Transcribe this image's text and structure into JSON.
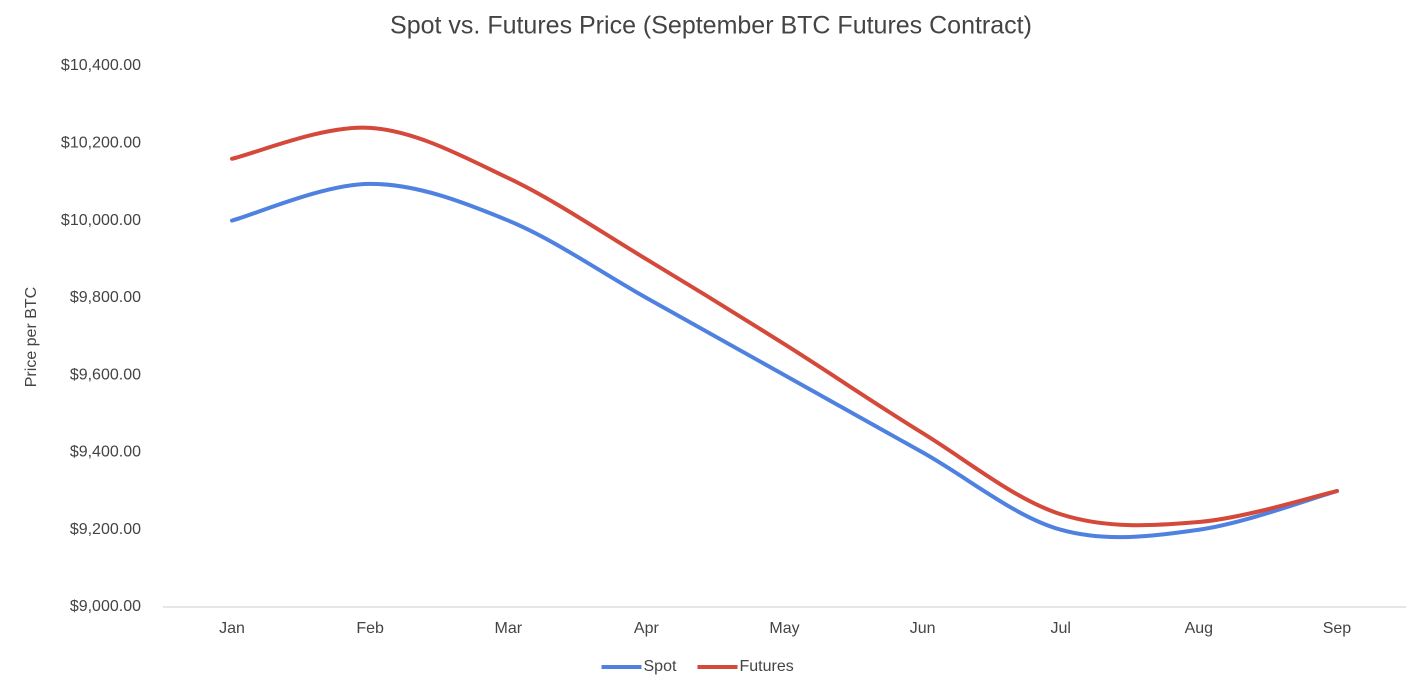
{
  "chart_data": {
    "type": "line",
    "title": "Spot vs. Futures Price (September BTC Futures Contract)",
    "y_label": "Price per BTC",
    "categories": [
      "Jan",
      "Feb",
      "Mar",
      "Apr",
      "May",
      "Jun",
      "Jul",
      "Aug",
      "Sep"
    ],
    "series": [
      {
        "name": "Spot",
        "color": "#4f81e0",
        "values": [
          10000,
          10095,
          10000,
          9800,
          9600,
          9400,
          9200,
          9200,
          9300
        ]
      },
      {
        "name": "Futures",
        "color": "#d4493a",
        "values": [
          10160,
          10240,
          10110,
          9900,
          9680,
          9450,
          9240,
          9220,
          9300
        ]
      }
    ],
    "ylim": [
      9000,
      10400
    ],
    "yticks": [
      {
        "value": 9000,
        "label": "$9,000.00"
      },
      {
        "value": 9200,
        "label": "$9,200.00"
      },
      {
        "value": 9400,
        "label": "$9,400.00"
      },
      {
        "value": 9600,
        "label": "$9,600.00"
      },
      {
        "value": 9800,
        "label": "$9,800.00"
      },
      {
        "value": 10000,
        "label": "$10,000.00"
      },
      {
        "value": 10200,
        "label": "$10,200.00"
      },
      {
        "value": 10400,
        "label": "$10,400.00"
      }
    ],
    "smooth": true,
    "grid": false,
    "legend": "bottom"
  }
}
